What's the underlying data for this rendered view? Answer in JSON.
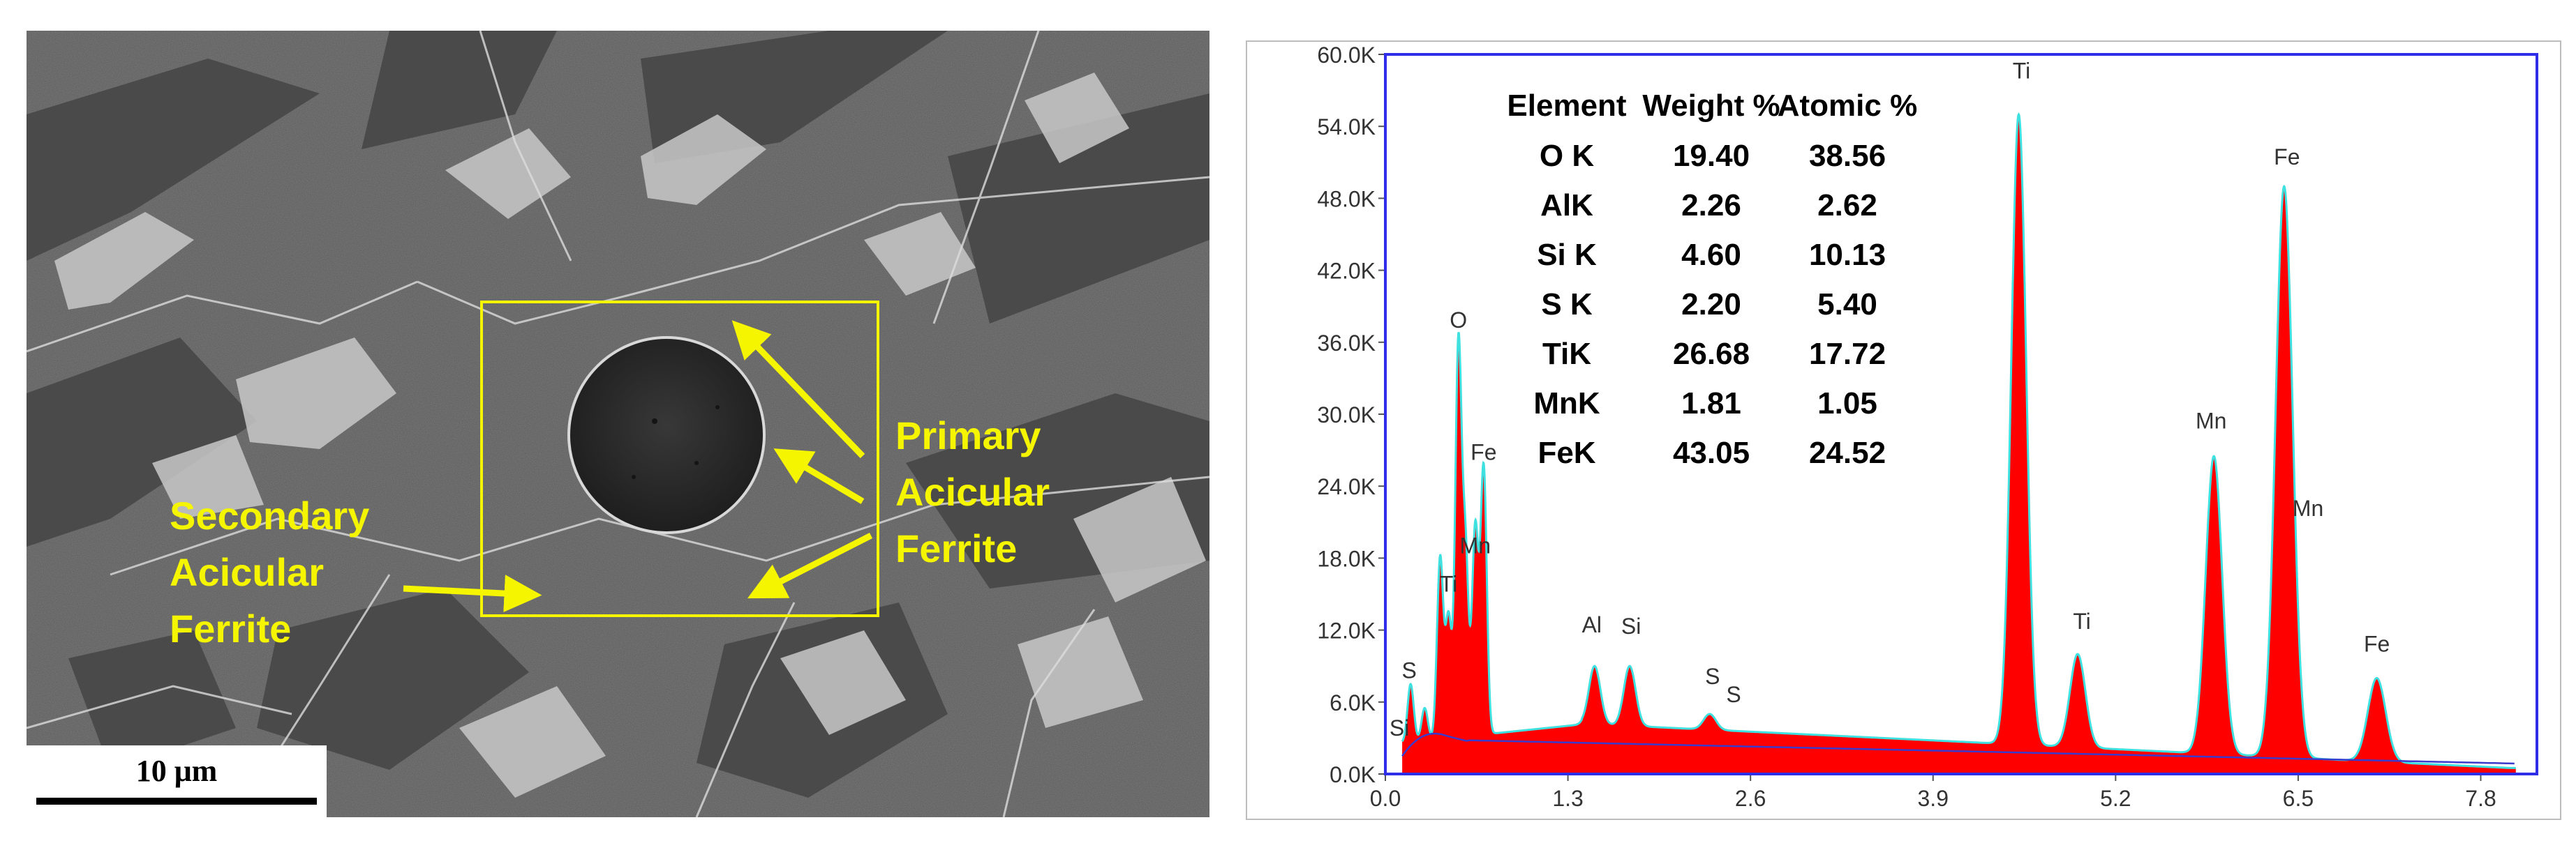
{
  "figure": {
    "sem_panel": {
      "scale_bar": {
        "label": "10 μm"
      },
      "annotations": {
        "secondary": [
          "Secondary",
          "Acicular",
          "Ferrite"
        ],
        "primary": [
          "Primary",
          "Acicular",
          "Ferrite"
        ]
      },
      "colors": {
        "annotation": "#f5f500",
        "background": "#595959",
        "inclusion": "#2c2c2c"
      }
    },
    "eds_panel": {
      "table": {
        "headers": [
          "Element",
          "Weight %",
          "Atomic %"
        ],
        "rows": [
          [
            "O K",
            "19.40",
            "38.56"
          ],
          [
            "AlK",
            "2.26",
            "2.62"
          ],
          [
            "Si K",
            "4.60",
            "10.13"
          ],
          [
            "S K",
            "2.20",
            "5.40"
          ],
          [
            "TiK",
            "26.68",
            "17.72"
          ],
          [
            "MnK",
            "1.81",
            "1.05"
          ],
          [
            "FeK",
            "43.05",
            "24.52"
          ]
        ]
      },
      "colors": {
        "fill": "#ff0000",
        "outline": "#3ee0e0",
        "frame": "#2e2ee8",
        "background_line": "#3a3acc"
      }
    }
  },
  "chart_data": {
    "type": "area",
    "title": "",
    "xlabel": "",
    "ylabel": "",
    "xlim": [
      0,
      8.2
    ],
    "ylim": [
      0,
      60000
    ],
    "x_ticks": [
      "0.0",
      "1.3",
      "2.6",
      "3.9",
      "5.2",
      "6.5",
      "7.8"
    ],
    "y_ticks": [
      "0.0K",
      "6.0K",
      "12.0K",
      "18.0K",
      "24.0K",
      "30.0K",
      "36.0K",
      "42.0K",
      "48.0K",
      "54.0K",
      "60.0K"
    ],
    "grid": false,
    "legend": "none",
    "series": [
      {
        "peaks": [
          {
            "x": 0.18,
            "y": 7500
          },
          {
            "x": 0.28,
            "y": 5500
          },
          {
            "x": 0.39,
            "y": 18000
          },
          {
            "x": 0.45,
            "y": 13000
          },
          {
            "x": 0.52,
            "y": 35500
          },
          {
            "x": 0.57,
            "y": 18500
          },
          {
            "x": 0.64,
            "y": 20500
          },
          {
            "x": 0.7,
            "y": 25500
          },
          {
            "x": 1.49,
            "y": 9000
          },
          {
            "x": 1.74,
            "y": 9000
          },
          {
            "x": 2.31,
            "y": 5000
          },
          {
            "x": 4.51,
            "y": 55000
          },
          {
            "x": 4.93,
            "y": 10000
          },
          {
            "x": 5.9,
            "y": 26500
          },
          {
            "x": 6.4,
            "y": 49000
          },
          {
            "x": 7.06,
            "y": 8000
          }
        ]
      }
    ],
    "peak_labels": [
      {
        "text": "O",
        "x": 0.52,
        "y": 37200
      },
      {
        "text": "Fe",
        "x": 0.7,
        "y": 26200
      },
      {
        "text": "Mn",
        "x": 0.64,
        "y": 18400
      },
      {
        "text": "Ti",
        "x": 0.45,
        "y": 15200
      },
      {
        "text": "S",
        "x": 0.17,
        "y": 8000
      },
      {
        "text": "Si",
        "x": 0.1,
        "y": 3200
      },
      {
        "text": "Al",
        "x": 1.47,
        "y": 11800
      },
      {
        "text": "Si",
        "x": 1.75,
        "y": 11700
      },
      {
        "text": "S",
        "x": 2.33,
        "y": 7500
      },
      {
        "text": "S",
        "x": 2.48,
        "y": 6000
      },
      {
        "text": "Ti",
        "x": 4.53,
        "y": 58000
      },
      {
        "text": "Ti",
        "x": 4.96,
        "y": 12100
      },
      {
        "text": "Mn",
        "x": 5.88,
        "y": 28800
      },
      {
        "text": "Fe",
        "x": 6.42,
        "y": 50800
      },
      {
        "text": "Mn",
        "x": 6.57,
        "y": 21500
      },
      {
        "text": "Fe",
        "x": 7.06,
        "y": 10200
      }
    ]
  }
}
